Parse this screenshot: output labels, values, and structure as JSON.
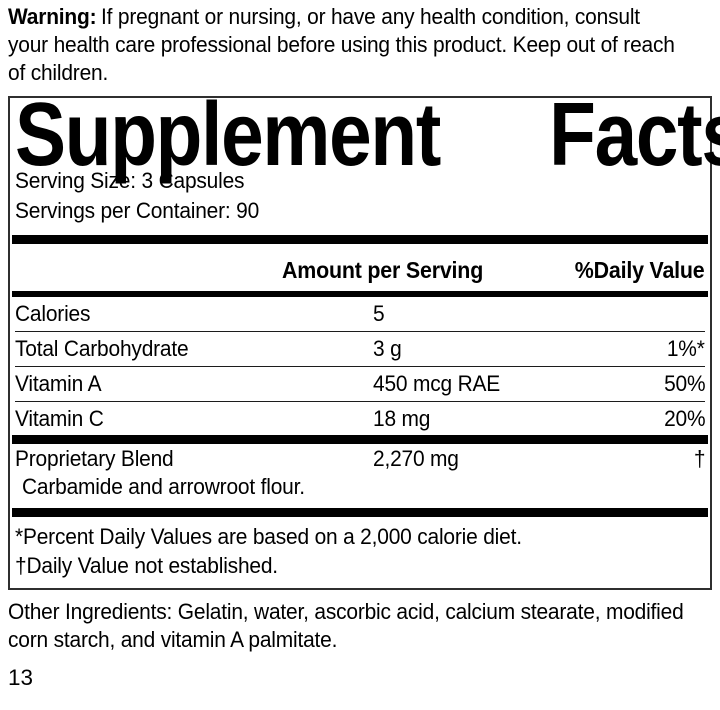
{
  "warning": {
    "lead": "Warning:",
    "lines": [
      "If pregnant or nursing, or have any health condition, consult",
      "your health care professional before using this product. Keep out of reach",
      "of children."
    ]
  },
  "panel": {
    "title": {
      "word1": "Supplement",
      "word2": "Facts"
    },
    "serving_size": "Serving Size: 3 Capsules",
    "servings_per_container": "Servings per Container: 90",
    "columns": {
      "amount": "Amount per Serving",
      "daily_value": "%Daily Value"
    },
    "rows": [
      {
        "name": "Calories",
        "amount": "5",
        "dv": ""
      },
      {
        "name": "Total Carbohydrate",
        "amount": "3 g",
        "dv": "1%*"
      },
      {
        "name": "Vitamin A",
        "amount": "450 mcg RAE",
        "dv": "50%"
      },
      {
        "name": "Vitamin C",
        "amount": "18 mg",
        "dv": "20%"
      }
    ],
    "proprietary_blend": {
      "name": "Proprietary Blend",
      "amount": "2,270 mg",
      "dv": "†",
      "components": "Carbamide and arrowroot flour."
    },
    "footnotes": [
      "*Percent Daily Values are based on a 2,000 calorie diet.",
      "†Daily Value not established."
    ]
  },
  "other_ingredients": {
    "lines": [
      "Other Ingredients: Gelatin, water, ascorbic acid, calcium stearate, modified",
      "corn starch, and vitamin A palmitate."
    ]
  },
  "page_number": "13",
  "colors": {
    "ink": "#000000",
    "background": "#ffffff"
  }
}
